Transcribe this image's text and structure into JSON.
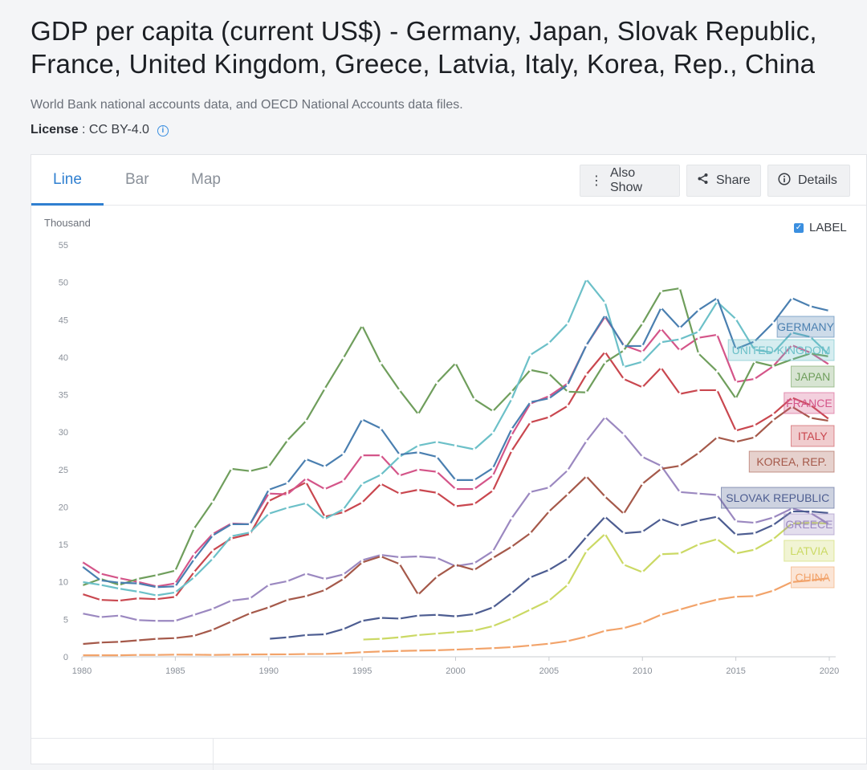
{
  "page": {
    "title": "GDP per capita (current US$) - Germany, Japan, Slovak Republic, France, United Kingdom, Greece, Latvia, Italy, Korea, Rep., China",
    "source": "World Bank national accounts data, and OECD National Accounts data files.",
    "license_label": "License",
    "license_value": " : CC BY-4.0",
    "info_icon": "i"
  },
  "tabs": [
    {
      "label": "Line",
      "active": true
    },
    {
      "label": "Bar",
      "active": false
    },
    {
      "label": "Map",
      "active": false
    }
  ],
  "toolbar": {
    "also_show": "Also Show",
    "share": "Share",
    "details": "Details"
  },
  "label_toggle": {
    "label": "LABEL",
    "checked": true
  },
  "chart_data": {
    "type": "line",
    "ylabel": "Thousand",
    "ylim": [
      0,
      55
    ],
    "yticks": [
      0,
      5,
      10,
      15,
      20,
      25,
      30,
      35,
      40,
      45,
      50,
      55
    ],
    "xlim": [
      1980,
      2020
    ],
    "xticks": [
      1980,
      1985,
      1990,
      1995,
      2000,
      2005,
      2010,
      2015,
      2020
    ],
    "series": [
      {
        "name": "GERMANY",
        "color": "#4a7fb0",
        "start": 1980,
        "values": [
          12.1,
          10.2,
          9.9,
          9.8,
          9.3,
          9.4,
          13.0,
          16.2,
          17.7,
          17.7,
          22.3,
          23.2,
          26.4,
          25.4,
          27.1,
          31.7,
          30.5,
          27.0,
          27.3,
          26.7,
          23.6,
          23.6,
          25.2,
          30.4,
          34.0,
          34.5,
          36.3,
          41.6,
          45.6,
          41.5,
          41.5,
          46.6,
          43.9,
          46.3,
          47.9,
          41.1,
          42.1,
          44.6,
          47.9,
          46.8,
          46.2
        ]
      },
      {
        "name": "UNITED KINGDOM",
        "color": "#6cc0c8",
        "start": 1980,
        "values": [
          10.0,
          9.6,
          9.1,
          8.7,
          8.2,
          8.6,
          10.6,
          13.1,
          16.1,
          16.6,
          19.1,
          19.9,
          20.5,
          18.4,
          19.7,
          23.1,
          24.3,
          26.7,
          28.2,
          28.7,
          28.2,
          27.7,
          29.9,
          34.4,
          40.3,
          41.9,
          44.5,
          50.4,
          47.3,
          38.7,
          39.4,
          42.0,
          42.4,
          43.4,
          47.4,
          45.1,
          41.0,
          40.6,
          43.3,
          42.7,
          40.3
        ]
      },
      {
        "name": "JAPAN",
        "color": "#6f9e5c",
        "start": 1980,
        "values": [
          9.5,
          10.4,
          9.6,
          10.4,
          10.9,
          11.5,
          17.1,
          20.7,
          25.1,
          24.8,
          25.4,
          28.9,
          31.5,
          35.8,
          39.9,
          44.2,
          39.2,
          35.6,
          32.4,
          36.6,
          39.2,
          34.4,
          32.8,
          35.4,
          38.3,
          37.8,
          35.4,
          35.3,
          39.3,
          40.9,
          44.5,
          48.8,
          49.2,
          40.5,
          38.1,
          34.5,
          39.4,
          38.8,
          39.7,
          40.5,
          40.1
        ]
      },
      {
        "name": "FRANCE",
        "color": "#d45589",
        "start": 1980,
        "values": [
          12.7,
          11.1,
          10.5,
          10.0,
          9.4,
          9.8,
          13.7,
          16.4,
          17.8,
          17.7,
          21.8,
          21.7,
          23.8,
          22.4,
          23.5,
          26.9,
          26.9,
          24.2,
          25.0,
          24.7,
          22.4,
          22.4,
          24.2,
          29.6,
          33.8,
          34.8,
          36.5,
          41.6,
          45.4,
          41.6,
          40.7,
          43.8,
          40.9,
          42.6,
          43.0,
          36.7,
          37.1,
          38.8,
          41.6,
          40.6,
          39.0
        ]
      },
      {
        "name": "ITALY",
        "color": "#c9474f",
        "start": 1980,
        "values": [
          8.4,
          7.6,
          7.5,
          7.8,
          7.7,
          8.0,
          11.3,
          14.2,
          15.8,
          16.4,
          20.8,
          22.0,
          23.3,
          18.7,
          19.3,
          20.6,
          23.1,
          21.8,
          22.3,
          21.9,
          20.1,
          20.4,
          22.2,
          27.5,
          31.3,
          32.0,
          33.5,
          37.7,
          40.7,
          37.1,
          36.0,
          38.6,
          35.1,
          35.6,
          35.6,
          30.2,
          30.9,
          32.4,
          34.6,
          33.6,
          31.7
        ]
      },
      {
        "name": "KOREA, REP.",
        "color": "#a5594a",
        "start": 1980,
        "values": [
          1.7,
          1.9,
          2.0,
          2.2,
          2.4,
          2.5,
          2.8,
          3.6,
          4.7,
          5.8,
          6.6,
          7.6,
          8.1,
          8.9,
          10.4,
          12.6,
          13.4,
          12.4,
          8.3,
          10.7,
          12.3,
          11.6,
          13.2,
          14.7,
          16.5,
          19.4,
          21.7,
          24.1,
          21.4,
          19.1,
          23.1,
          25.1,
          25.5,
          27.2,
          29.3,
          28.7,
          29.3,
          31.6,
          33.4,
          31.9,
          31.5
        ]
      },
      {
        "name": "SLOVAK REPUBLIC",
        "color": "#4d5d91",
        "start": 1990,
        "values": [
          2.4,
          2.6,
          2.9,
          3.0,
          3.7,
          4.8,
          5.2,
          5.1,
          5.5,
          5.6,
          5.4,
          5.7,
          6.6,
          8.5,
          10.6,
          11.6,
          13.1,
          16.0,
          18.7,
          16.5,
          16.7,
          18.4,
          17.5,
          18.2,
          18.7,
          16.3,
          16.5,
          17.6,
          19.4,
          19.4,
          19.2
        ]
      },
      {
        "name": "GREECE",
        "color": "#9b88c0",
        "start": 1980,
        "values": [
          5.8,
          5.3,
          5.5,
          4.9,
          4.8,
          4.8,
          5.6,
          6.4,
          7.5,
          7.8,
          9.6,
          10.1,
          11.1,
          10.4,
          11.0,
          12.9,
          13.6,
          13.3,
          13.4,
          13.2,
          12.1,
          12.5,
          14.1,
          18.5,
          22.0,
          22.6,
          24.9,
          28.8,
          32.0,
          29.7,
          26.7,
          25.5,
          22.0,
          21.8,
          21.6,
          18.1,
          17.9,
          18.6,
          19.8,
          19.2,
          17.7
        ]
      },
      {
        "name": "LATVIA",
        "color": "#cbd964",
        "start": 1995,
        "values": [
          2.3,
          2.4,
          2.6,
          2.9,
          3.1,
          3.3,
          3.5,
          4.1,
          5.1,
          6.3,
          7.5,
          9.6,
          14.1,
          16.4,
          12.3,
          11.3,
          13.7,
          13.8,
          15.0,
          15.7,
          13.8,
          14.3,
          15.7,
          17.8,
          17.9,
          17.8
        ]
      },
      {
        "name": "CHINA",
        "color": "#f2a36a",
        "start": 1980,
        "values": [
          0.2,
          0.2,
          0.2,
          0.25,
          0.25,
          0.29,
          0.28,
          0.25,
          0.28,
          0.31,
          0.32,
          0.33,
          0.37,
          0.38,
          0.47,
          0.61,
          0.71,
          0.78,
          0.83,
          0.87,
          0.96,
          1.05,
          1.15,
          1.29,
          1.51,
          1.75,
          2.1,
          2.69,
          3.47,
          3.83,
          4.55,
          5.61,
          6.3,
          7.02,
          7.64,
          8.02,
          8.1,
          8.82,
          9.98,
          10.2,
          10.5
        ]
      }
    ]
  }
}
